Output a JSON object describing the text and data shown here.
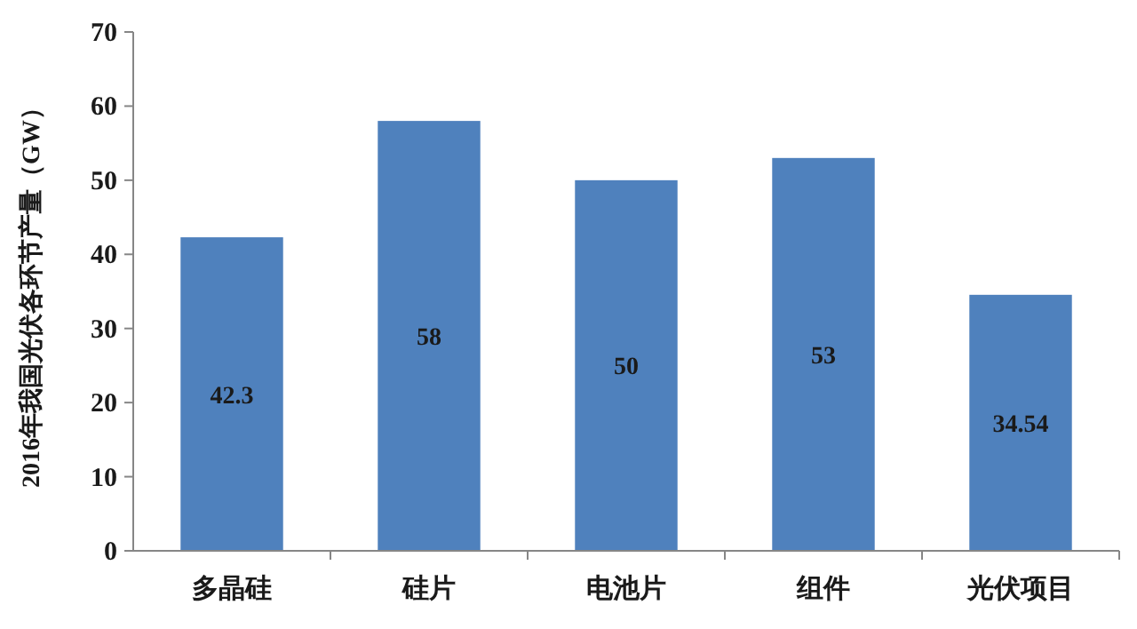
{
  "chart_data": {
    "type": "bar",
    "ylabel": "2016年我国光伏各环节产量（GW）",
    "categories": [
      "多晶硅",
      "硅片",
      "电池片",
      "组件",
      "光伏项目"
    ],
    "values": [
      42.3,
      58,
      50,
      53,
      34.54
    ],
    "color": "#4f81bd",
    "ylim": [
      0,
      70
    ],
    "yticks": [
      0,
      10,
      20,
      30,
      40,
      50,
      60,
      70
    ],
    "data_labels": true
  }
}
